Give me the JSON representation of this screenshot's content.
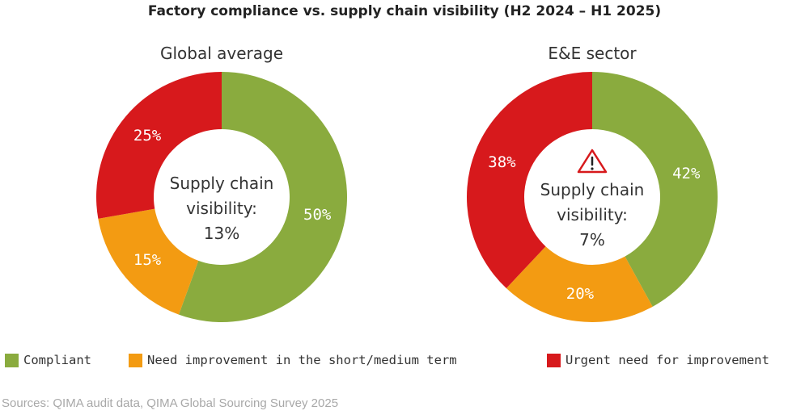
{
  "chart_data": {
    "type": "pie",
    "title": "Factory compliance vs. supply chain visibility (H2 2024 – H1 2025)",
    "legend": {
      "placement": "bottom",
      "entries": [
        {
          "label": "Compliant",
          "color": "#8aab3e"
        },
        {
          "label": "Need improvement in the short/medium term",
          "color": "#f39b12"
        },
        {
          "label": "Urgent need for improvement",
          "color": "#d7191c"
        }
      ]
    },
    "charts": [
      {
        "subtitle": "Global average",
        "center_line1": "Supply chain",
        "center_line2": "visibility:",
        "center_value": "13%",
        "center_value_color": "#333333",
        "warning": false,
        "slices": [
          {
            "category": "Compliant",
            "value": 50,
            "label": "50%",
            "color": "#8aab3e"
          },
          {
            "category": "Need improvement in the short/medium term",
            "value": 15,
            "label": "15%",
            "color": "#f39b12"
          },
          {
            "category": "Urgent need for improvement",
            "value": 25,
            "label": "25%",
            "color": "#d7191c"
          }
        ]
      },
      {
        "subtitle": "E&E sector",
        "center_line1": "Supply chain",
        "center_line2": "visibility:",
        "center_value": "7%",
        "center_value_color": "#d7191c",
        "warning": true,
        "warning_icon": "warning-triangle-icon",
        "slices": [
          {
            "category": "Compliant",
            "value": 42,
            "label": "42%",
            "color": "#8aab3e"
          },
          {
            "category": "Need improvement in the short/medium term",
            "value": 20,
            "label": "20%",
            "color": "#f39b12"
          },
          {
            "category": "Urgent need for improvement",
            "value": 38,
            "label": "38%",
            "color": "#d7191c"
          }
        ]
      }
    ]
  },
  "source": "Sources: QIMA audit data, QIMA Global Sourcing Survey 2025"
}
